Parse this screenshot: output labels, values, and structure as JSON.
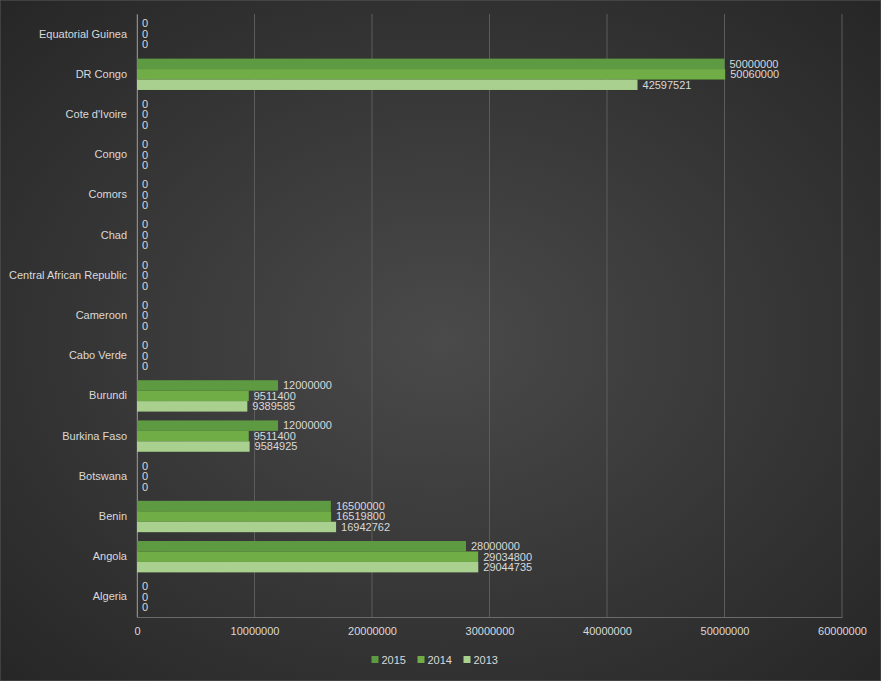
{
  "chart_data": {
    "type": "bar",
    "orientation": "horizontal",
    "categories": [
      "Algeria",
      "Angola",
      "Benin",
      "Botswana",
      "Burkina Faso",
      "Burundi",
      "Cabo Verde",
      "Cameroon",
      "Central African Republic",
      "Chad",
      "Comors",
      "Congo",
      "Cote d'Ivoire",
      "DR Congo",
      "Equatorial Guinea"
    ],
    "series": [
      {
        "name": "2015",
        "color": "#5e9a42",
        "values": [
          0,
          28000000,
          16500000,
          0,
          12000000,
          12000000,
          0,
          0,
          0,
          0,
          0,
          0,
          0,
          50000000,
          0
        ]
      },
      {
        "name": "2014",
        "color": "#70ad47",
        "values": [
          0,
          29034800,
          16519800,
          0,
          9511400,
          9511400,
          0,
          0,
          0,
          0,
          0,
          0,
          0,
          50060000,
          0
        ]
      },
      {
        "name": "2013",
        "color": "#a9d08e",
        "values": [
          0,
          29044735,
          16942762,
          0,
          9584925,
          9389585,
          0,
          0,
          0,
          0,
          0,
          0,
          0,
          42597521,
          0
        ]
      }
    ],
    "xlim": [
      0,
      60000000
    ],
    "xticks": [
      0,
      10000000,
      20000000,
      30000000,
      40000000,
      50000000,
      60000000
    ],
    "grid": true,
    "legend": "bottom",
    "data_labels": true
  }
}
